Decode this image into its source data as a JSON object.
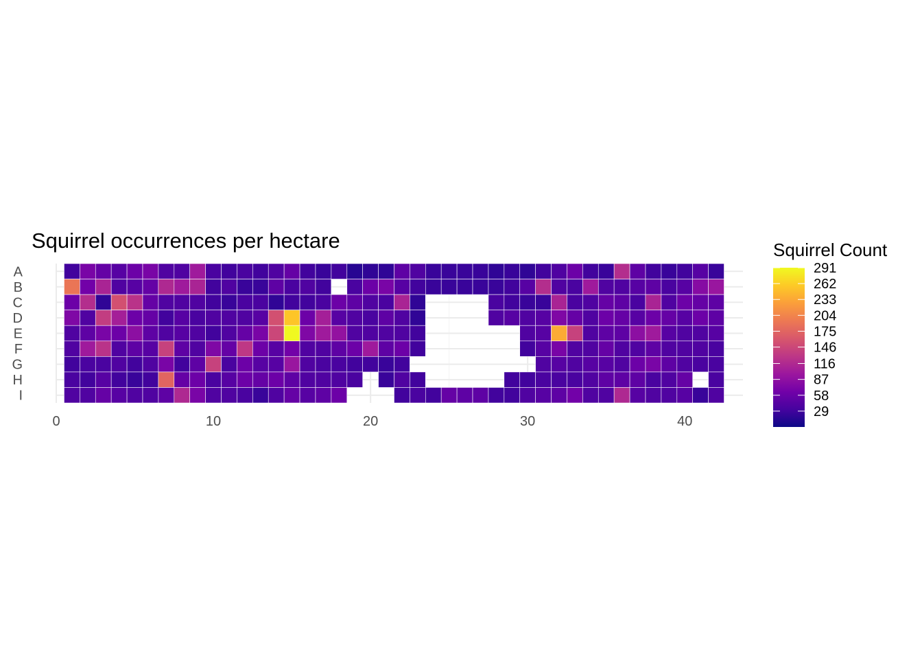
{
  "chart_data": {
    "type": "heatmap",
    "title": "Squirrel occurrences per hectare",
    "xlabel": "",
    "ylabel": "",
    "x": [
      1,
      2,
      3,
      4,
      5,
      6,
      7,
      8,
      9,
      10,
      11,
      12,
      13,
      14,
      15,
      16,
      17,
      18,
      19,
      20,
      21,
      22,
      23,
      24,
      25,
      26,
      27,
      28,
      29,
      30,
      31,
      32,
      33,
      34,
      35,
      36,
      37,
      38,
      39,
      40,
      41,
      42
    ],
    "xlim": [
      0,
      43.7
    ],
    "x_ticks": [
      "0",
      "10",
      "20",
      "30",
      "40"
    ],
    "y_categories": [
      "A",
      "B",
      "C",
      "D",
      "E",
      "F",
      "G",
      "H",
      "I"
    ],
    "values": [
      [
        30,
        70,
        55,
        45,
        60,
        70,
        40,
        40,
        100,
        35,
        30,
        35,
        30,
        40,
        55,
        30,
        25,
        30,
        15,
        20,
        20,
        50,
        40,
        25,
        25,
        25,
        25,
        20,
        25,
        20,
        30,
        40,
        60,
        30,
        25,
        120,
        50,
        30,
        25,
        30,
        45,
        25
      ],
      [
        190,
        65,
        110,
        40,
        45,
        55,
        115,
        100,
        110,
        30,
        40,
        25,
        25,
        50,
        35,
        40,
        30,
        null,
        35,
        60,
        70,
        45,
        30,
        25,
        25,
        25,
        25,
        25,
        30,
        45,
        120,
        40,
        35,
        100,
        40,
        40,
        45,
        50,
        35,
        45,
        80,
        95
      ],
      [
        60,
        120,
        20,
        155,
        125,
        55,
        40,
        40,
        40,
        30,
        25,
        35,
        35,
        20,
        30,
        30,
        35,
        60,
        50,
        40,
        35,
        110,
        20,
        null,
        null,
        null,
        null,
        35,
        30,
        25,
        25,
        110,
        35,
        40,
        55,
        50,
        35,
        110,
        40,
        60,
        55,
        50
      ],
      [
        75,
        40,
        135,
        105,
        60,
        55,
        30,
        45,
        35,
        40,
        40,
        40,
        45,
        155,
        255,
        60,
        105,
        45,
        40,
        35,
        50,
        40,
        20,
        null,
        null,
        null,
        null,
        40,
        45,
        40,
        45,
        75,
        55,
        40,
        60,
        55,
        45,
        60,
        55,
        45,
        60,
        50
      ],
      [
        40,
        50,
        70,
        60,
        85,
        50,
        40,
        45,
        40,
        30,
        40,
        55,
        70,
        145,
        290,
        75,
        100,
        90,
        40,
        40,
        40,
        40,
        30,
        null,
        null,
        null,
        null,
        null,
        null,
        40,
        45,
        235,
        140,
        40,
        50,
        50,
        85,
        100,
        45,
        40,
        40,
        45
      ],
      [
        40,
        100,
        125,
        40,
        50,
        45,
        140,
        50,
        40,
        75,
        55,
        130,
        60,
        45,
        65,
        40,
        40,
        50,
        60,
        100,
        50,
        60,
        30,
        null,
        null,
        null,
        null,
        null,
        null,
        30,
        45,
        70,
        40,
        40,
        55,
        40,
        40,
        50,
        40,
        40,
        40,
        35
      ],
      [
        30,
        35,
        35,
        40,
        30,
        40,
        70,
        30,
        50,
        140,
        35,
        60,
        45,
        45,
        95,
        40,
        35,
        35,
        30,
        30,
        25,
        30,
        null,
        null,
        null,
        null,
        null,
        null,
        null,
        null,
        40,
        45,
        40,
        45,
        45,
        40,
        60,
        70,
        50,
        40,
        35,
        35
      ],
      [
        35,
        30,
        45,
        30,
        25,
        30,
        175,
        55,
        60,
        35,
        45,
        60,
        55,
        60,
        50,
        40,
        40,
        40,
        35,
        null,
        25,
        40,
        30,
        null,
        null,
        null,
        null,
        null,
        30,
        30,
        35,
        35,
        35,
        40,
        50,
        50,
        50,
        35,
        40,
        55,
        null,
        35
      ],
      [
        40,
        40,
        55,
        45,
        40,
        40,
        50,
        115,
        70,
        40,
        40,
        35,
        25,
        40,
        55,
        45,
        50,
        60,
        null,
        null,
        null,
        30,
        35,
        30,
        55,
        50,
        50,
        30,
        30,
        40,
        45,
        50,
        65,
        40,
        40,
        115,
        45,
        40,
        40,
        45,
        25,
        40
      ]
    ],
    "missing": "blank cell (no data)",
    "color_scale": {
      "name": "plasma",
      "min": 0,
      "max": 291,
      "stops": [
        "#0d0887",
        "#46039f",
        "#7201a8",
        "#9c179e",
        "#bd3786",
        "#d8576b",
        "#ed7953",
        "#fb9f3a",
        "#fdca26",
        "#f0f921"
      ]
    },
    "legend": {
      "title": "Squirrel Count",
      "position": "right",
      "ticks": [
        291,
        262,
        233,
        204,
        175,
        146,
        116,
        87,
        58,
        29
      ]
    },
    "grid": true
  }
}
